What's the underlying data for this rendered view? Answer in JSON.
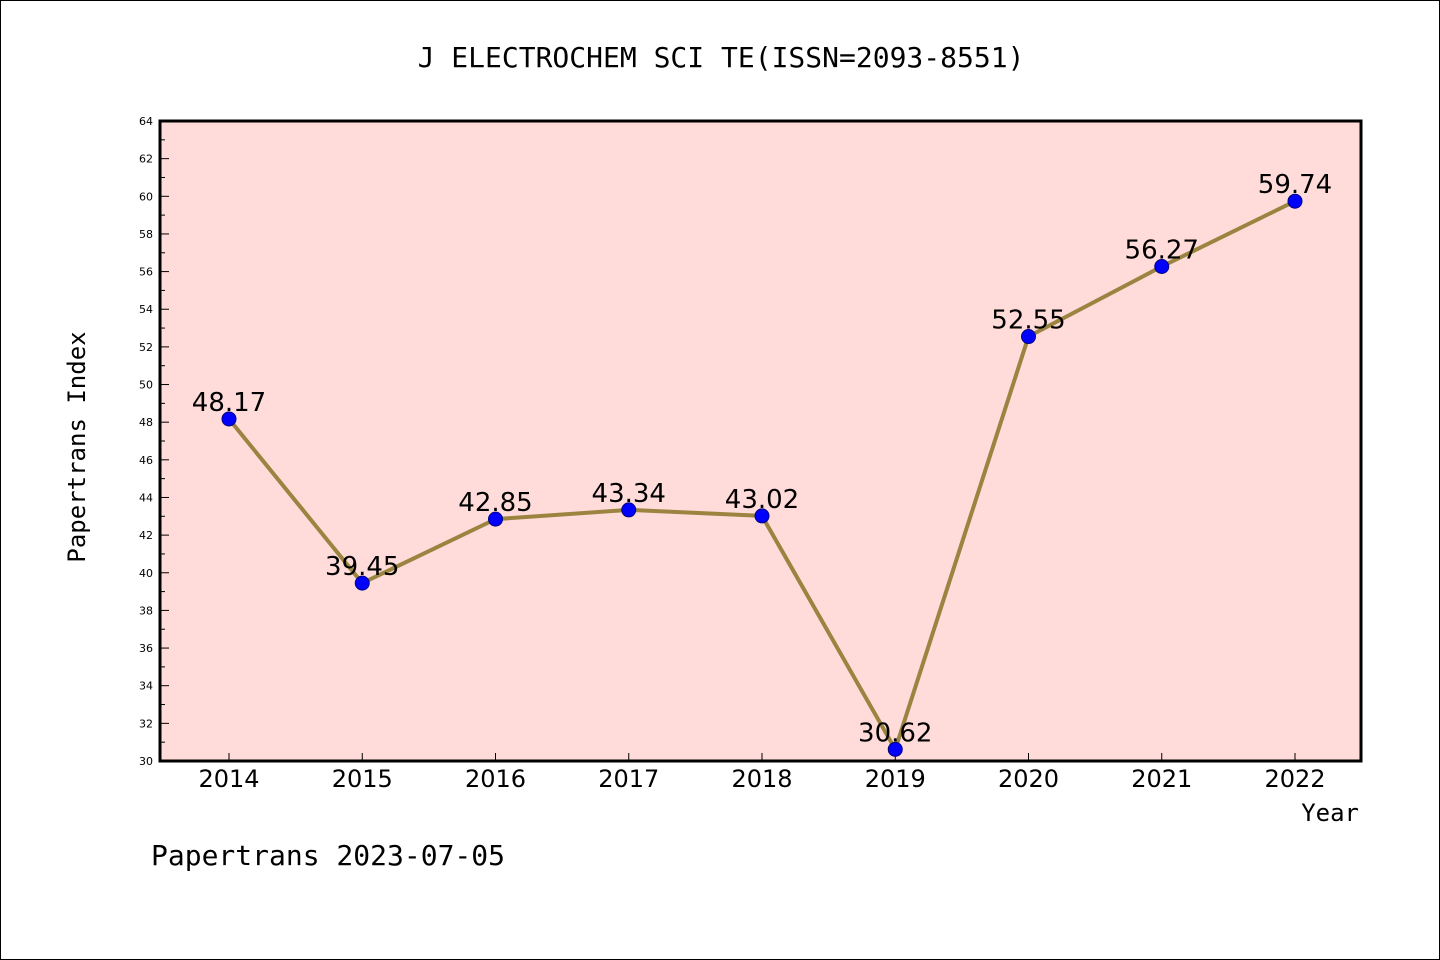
{
  "chart_data": {
    "type": "line",
    "title": "J ELECTROCHEM SCI TE(ISSN=2093-8551)",
    "xlabel": "Year",
    "ylabel": "Papertrans Index",
    "x": [
      "2014",
      "2015",
      "2016",
      "2017",
      "2018",
      "2019",
      "2020",
      "2021",
      "2022"
    ],
    "values": [
      48.17,
      39.45,
      42.85,
      43.34,
      43.02,
      30.62,
      52.55,
      56.27,
      59.74
    ],
    "data_labels": [
      "48.17",
      "39.45",
      "42.85",
      "43.34",
      "43.02",
      "30.62",
      "52.55",
      "56.27",
      "59.74"
    ],
    "ylim": [
      30,
      64
    ],
    "yticks": [
      "30",
      "32",
      "34",
      "36",
      "38",
      "40",
      "42",
      "44",
      "46",
      "48",
      "50",
      "52",
      "54",
      "56",
      "58",
      "60",
      "62",
      "64"
    ],
    "grid": false,
    "legend": "none",
    "colors": {
      "plot_background": "#ffdbda",
      "line": "#9a8440",
      "marker": "#0000ff"
    }
  },
  "footer": {
    "text": "Papertrans 2023-07-05"
  }
}
